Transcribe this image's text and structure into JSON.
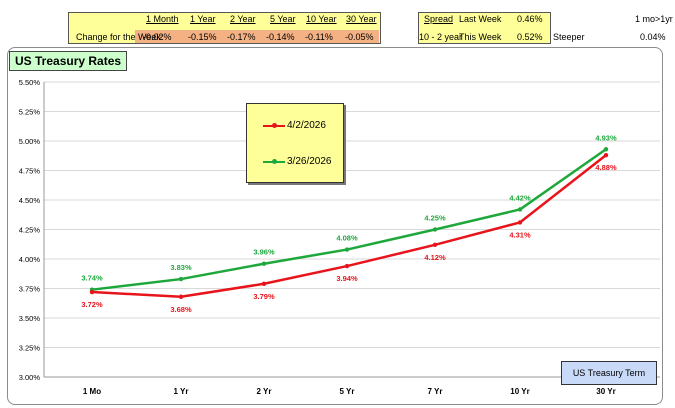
{
  "change_table": {
    "headers": [
      "1 Month",
      "1 Year",
      "2 Year",
      "5 Year",
      "10 Year",
      "30 Year"
    ],
    "row_label": "Change for the Week:",
    "values": [
      "-0.02%",
      "-0.15%",
      "-0.17%",
      "-0.14%",
      "-0.11%",
      "-0.05%"
    ]
  },
  "spread_table": {
    "header": "Spread",
    "row_label": "10 - 2 year",
    "last_week_label": "Last Week",
    "last_week_value": "0.46%",
    "this_week_label": "This Week",
    "this_week_value": "0.52%",
    "status": "Steeper"
  },
  "side_note": {
    "label": "1 mo>1yr",
    "value": "0.04%"
  },
  "term_button": "US Treasury Term",
  "colors": {
    "current": "#e8141b",
    "previous": "#1ea83c"
  },
  "chart_data": {
    "type": "line",
    "title": "US Treasury Rates",
    "categories": [
      "1 Mo",
      "1 Yr",
      "2 Yr",
      "5 Yr",
      "7 Yr",
      "10 Yr",
      "30 Yr"
    ],
    "series": [
      {
        "name": "4/2/2026",
        "values": [
          3.72,
          3.68,
          3.79,
          3.94,
          4.12,
          4.31,
          4.88
        ],
        "labels": [
          "3.72%",
          "3.68%",
          "3.79%",
          "3.94%",
          "4.12%",
          "4.31%",
          "4.88%"
        ]
      },
      {
        "name": "3/26/2026",
        "values": [
          3.74,
          3.83,
          3.96,
          4.08,
          4.25,
          4.42,
          4.93
        ],
        "labels": [
          "3.74%",
          "3.83%",
          "3.96%",
          "4.08%",
          "4.25%",
          "4.42%",
          "4.93%"
        ]
      }
    ],
    "ylim": [
      3.0,
      5.5
    ],
    "yticks": [
      "3.00%",
      "3.25%",
      "3.50%",
      "3.75%",
      "4.00%",
      "4.25%",
      "4.50%",
      "4.75%",
      "5.00%",
      "5.25%",
      "5.50%"
    ],
    "grid": true,
    "legend": "upper-left inside plot"
  }
}
